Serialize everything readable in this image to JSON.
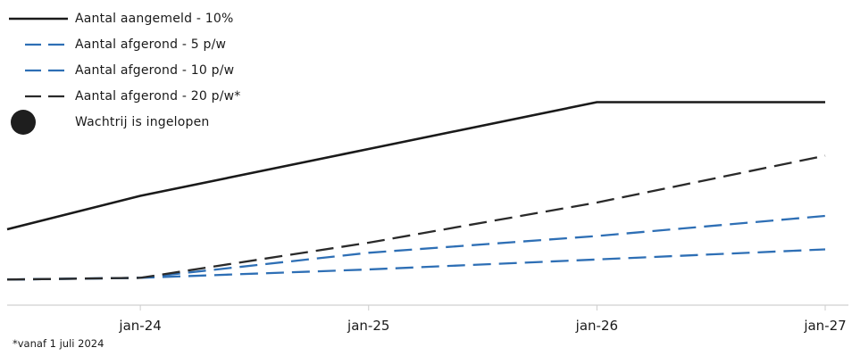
{
  "chart_data": {
    "type": "line",
    "x_ticks": [
      "jan-24",
      "jan-25",
      "jan-26",
      "jan-27"
    ],
    "x_range": [
      "2023-06",
      "2027-01"
    ],
    "series": [
      {
        "name": "Aantal aangemeld - 10%",
        "style": "solid",
        "color": "#1a1a1a",
        "points": [
          [
            "2023-06",
            2.0
          ],
          [
            "2024-01",
            3.0
          ],
          [
            "2025-01",
            4.4
          ],
          [
            "2026-01",
            5.8
          ],
          [
            "2027-01",
            5.8
          ]
        ]
      },
      {
        "name": "Aantal afgerond - 5 p/w",
        "style": "dashed",
        "color": "#2e6fb5",
        "points": [
          [
            "2023-06",
            0.5
          ],
          [
            "2024-01",
            0.55
          ],
          [
            "2025-01",
            0.8
          ],
          [
            "2026-01",
            1.1
          ],
          [
            "2027-01",
            1.4
          ]
        ]
      },
      {
        "name": "Aantal afgerond - 10 p/w",
        "style": "dashed",
        "color": "#2e6fb5",
        "points": [
          [
            "2023-06",
            0.5
          ],
          [
            "2024-01",
            0.55
          ],
          [
            "2025-01",
            1.3
          ],
          [
            "2026-01",
            1.8
          ],
          [
            "2027-01",
            2.4
          ]
        ]
      },
      {
        "name": "Aantal afgerond - 20 p/w*",
        "style": "dashed",
        "color": "#2a2a2a",
        "points": [
          [
            "2023-06",
            0.5
          ],
          [
            "2024-01",
            0.55
          ],
          [
            "2025-01",
            1.6
          ],
          [
            "2026-01",
            2.8
          ],
          [
            "2027-01",
            4.2
          ]
        ]
      }
    ],
    "markers_legend": "Wachtrij is ingelopen",
    "footnote": "*vanaf 1 juli 2024",
    "grid": false,
    "legend_position": "top-left"
  }
}
